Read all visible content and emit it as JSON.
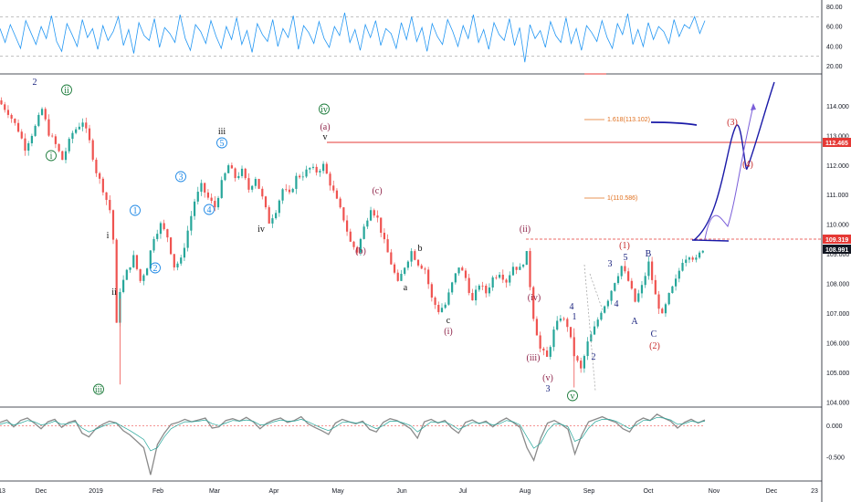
{
  "colors": {
    "up": "#26a69a",
    "down": "#ef5350",
    "indicator": "#2196f3",
    "wave_blue": "#1a237e",
    "wave_green": "#1b7a3a",
    "wave_red": "#c62828",
    "wave_maroon": "#8e2449",
    "wave_cyan": "#1e88e5",
    "wave_black": "#111111",
    "fib": "#e0701f",
    "projection": "#1a1aa8",
    "projection_alt": "#7b5fd9",
    "hline": "#e53935",
    "price_badge": "#131722"
  },
  "chart_data": [
    {
      "type": "line",
      "panel": "top_oscillator",
      "ylim": [
        15,
        85
      ],
      "yticks": [
        "80.00",
        "60.00",
        "40.00",
        "20.00"
      ],
      "grid": false,
      "reference_lines": [
        70,
        30
      ],
      "series": [
        {
          "values": [
            58,
            44,
            62,
            50,
            38,
            66,
            54,
            42,
            60,
            48,
            71,
            45,
            35,
            63,
            52,
            40,
            67,
            49,
            58,
            37,
            61,
            46,
            55,
            70,
            41,
            57,
            33,
            64,
            51,
            46,
            68,
            39,
            59,
            53,
            44,
            72,
            48,
            36,
            62,
            55,
            43,
            66,
            50,
            38,
            60,
            47,
            69,
            42,
            56,
            34,
            63,
            52,
            45,
            67,
            40,
            58,
            49,
            71,
            37,
            61,
            54,
            43,
            65,
            48,
            39,
            60,
            51,
            74,
            44,
            57,
            36,
            62,
            49,
            66,
            41,
            58,
            53,
            38,
            64,
            47,
            70,
            45,
            59,
            35,
            63,
            50,
            42,
            67,
            55,
            40,
            61,
            48,
            72,
            44,
            57,
            37,
            64,
            52,
            46,
            68,
            41,
            59,
            24,
            62,
            48,
            56,
            39,
            65,
            51,
            44,
            69,
            43,
            58,
            36,
            61,
            54,
            45,
            66,
            49,
            38,
            63,
            52,
            73,
            42,
            57,
            40,
            64,
            47,
            60,
            55,
            43,
            67,
            50,
            62,
            58,
            70,
            53,
            66
          ]
        }
      ]
    },
    {
      "type": "candlestick",
      "panel": "price",
      "ylim": [
        103.9,
        115.0
      ],
      "yticks": [
        "114.000",
        "113.000",
        "112.000",
        "111.000",
        "110.000",
        "109.000",
        "108.000",
        "107.000",
        "106.000",
        "105.000",
        "104.000"
      ],
      "x_tick_labels": [
        "13",
        "Dec",
        "2019",
        "Feb",
        "Mar",
        "Apr",
        "May",
        "Jun",
        "Jul",
        "Aug",
        "Sep",
        "Oct",
        "Nov",
        "Dec",
        "23"
      ],
      "price_path": [
        [
          0,
          114.2
        ],
        [
          3,
          113.8
        ],
        [
          6,
          113.2
        ],
        [
          8,
          112.6
        ],
        [
          11,
          113.3
        ],
        [
          13,
          113.9
        ],
        [
          15,
          113.1
        ],
        [
          17,
          112.7
        ],
        [
          19,
          112.2
        ],
        [
          22,
          113.1
        ],
        [
          25,
          113.5
        ],
        [
          27,
          112.8
        ],
        [
          29,
          111.8
        ],
        [
          31,
          111.2
        ],
        [
          33,
          110.5
        ],
        [
          34,
          109.5
        ],
        [
          35,
          106.6
        ],
        [
          36,
          107.8
        ],
        [
          38,
          108.4
        ],
        [
          40,
          108.9
        ],
        [
          42,
          108.1
        ],
        [
          44,
          108.6
        ],
        [
          46,
          109.6
        ],
        [
          48,
          110.0
        ],
        [
          50,
          109.6
        ],
        [
          52,
          108.6
        ],
        [
          54,
          108.8
        ],
        [
          56,
          109.8
        ],
        [
          58,
          110.8
        ],
        [
          60,
          111.3
        ],
        [
          62,
          110.9
        ],
        [
          64,
          110.6
        ],
        [
          66,
          111.4
        ],
        [
          68,
          112.0
        ],
        [
          70,
          111.6
        ],
        [
          72,
          111.8
        ],
        [
          74,
          111.2
        ],
        [
          76,
          111.6
        ],
        [
          78,
          110.9
        ],
        [
          80,
          110.1
        ],
        [
          82,
          110.5
        ],
        [
          84,
          111.2
        ],
        [
          86,
          111.0
        ],
        [
          88,
          111.6
        ],
        [
          90,
          111.7
        ],
        [
          92,
          111.9
        ],
        [
          94,
          111.8
        ],
        [
          96,
          112.0
        ],
        [
          98,
          111.4
        ],
        [
          100,
          110.8
        ],
        [
          102,
          110.2
        ],
        [
          104,
          109.4
        ],
        [
          106,
          109.1
        ],
        [
          108,
          109.9
        ],
        [
          110,
          110.6
        ],
        [
          112,
          110.2
        ],
        [
          114,
          109.4
        ],
        [
          116,
          108.7
        ],
        [
          118,
          108.0
        ],
        [
          120,
          108.6
        ],
        [
          122,
          109.1
        ],
        [
          124,
          108.7
        ],
        [
          126,
          108.5
        ],
        [
          128,
          107.5
        ],
        [
          130,
          107.1
        ],
        [
          132,
          107.3
        ],
        [
          134,
          108.0
        ],
        [
          136,
          108.6
        ],
        [
          138,
          108.2
        ],
        [
          140,
          107.4
        ],
        [
          142,
          108.0
        ],
        [
          144,
          107.7
        ],
        [
          146,
          108.2
        ],
        [
          148,
          108.4
        ],
        [
          150,
          108.1
        ],
        [
          152,
          108.6
        ],
        [
          154,
          108.5
        ],
        [
          156,
          109.0
        ],
        [
          158,
          106.9
        ],
        [
          160,
          105.8
        ],
        [
          162,
          105.5
        ],
        [
          164,
          106.4
        ],
        [
          166,
          106.9
        ],
        [
          168,
          106.6
        ],
        [
          170,
          105.6
        ],
        [
          172,
          105.1
        ],
        [
          174,
          106.0
        ],
        [
          176,
          106.5
        ],
        [
          178,
          107.1
        ],
        [
          180,
          107.5
        ],
        [
          182,
          108.1
        ],
        [
          184,
          108.6
        ],
        [
          186,
          108.1
        ],
        [
          188,
          107.4
        ],
        [
          190,
          107.9
        ],
        [
          192,
          108.7
        ],
        [
          194,
          107.6
        ],
        [
          196,
          106.9
        ],
        [
          198,
          107.6
        ],
        [
          200,
          108.1
        ],
        [
          202,
          108.8
        ],
        [
          204,
          109.0
        ],
        [
          206,
          108.8
        ],
        [
          208,
          109.2
        ]
      ],
      "x_end": 270
    },
    {
      "type": "line",
      "panel": "bottom_oscillator",
      "ylim": [
        -0.85,
        0.25
      ],
      "yticks": [
        "0.000",
        "-0.500"
      ],
      "grid": false,
      "zero_line": true,
      "series": [
        {
          "name": "",
          "values": [
            0.05,
            0.09,
            -0.02,
            0.08,
            0.12,
            0.04,
            -0.05,
            0.06,
            0.1,
            -0.03,
            0.05,
            0.08,
            -0.12,
            -0.18,
            -0.05,
            0.02,
            0.07,
            0.04,
            -0.08,
            -0.15,
            -0.25,
            -0.35,
            -0.78,
            -0.3,
            -0.12,
            0.02,
            0.05,
            0.1,
            0.06,
            0.09,
            0.12,
            -0.04,
            -0.02,
            0.08,
            0.11,
            0.07,
            0.13,
            0.06,
            -0.05,
            0.04,
            0.09,
            0.12,
            0.05,
            0.08,
            0.14,
            0.03,
            -0.03,
            -0.08,
            -0.14,
            0.04,
            0.1,
            0.06,
            0.03,
            0.07,
            -0.06,
            -0.1,
            0.05,
            0.11,
            0.08,
            0.02,
            -0.05,
            -0.2,
            0.06,
            0.1,
            0.04,
            0.08,
            -0.04,
            -0.12,
            0.05,
            0.09,
            0.03,
            0.07,
            -0.02,
            0.06,
            0.12,
            0.05,
            -0.03,
            -0.35,
            -0.55,
            -0.2,
            0.04,
            0.08,
            0.02,
            -0.06,
            -0.45,
            -0.15,
            0.06,
            0.1,
            0.14,
            0.09,
            0.05,
            -0.05,
            -0.1,
            0.06,
            0.12,
            0.08,
            0.18,
            0.12,
            0.07,
            -0.04,
            0.05,
            0.1,
            0.04,
            0.09
          ]
        },
        {
          "name": "",
          "values": [
            0.02,
            0.05,
            0.01,
            0.04,
            0.08,
            0.06,
            0.01,
            0.03,
            0.07,
            0.02,
            0.03,
            0.06,
            -0.04,
            -0.1,
            -0.06,
            -0.01,
            0.03,
            0.04,
            -0.02,
            -0.08,
            -0.15,
            -0.22,
            -0.4,
            -0.35,
            -0.18,
            -0.05,
            0.01,
            0.06,
            0.06,
            0.07,
            0.09,
            0.03,
            0.0,
            0.04,
            0.08,
            0.07,
            0.09,
            0.07,
            0.01,
            0.02,
            0.06,
            0.09,
            0.07,
            0.07,
            0.1,
            0.06,
            0.01,
            -0.04,
            -0.08,
            -0.02,
            0.05,
            0.06,
            0.04,
            0.05,
            0.0,
            -0.05,
            0.0,
            0.07,
            0.07,
            0.04,
            0.0,
            -0.1,
            -0.02,
            0.06,
            0.05,
            0.06,
            0.01,
            -0.06,
            -0.01,
            0.05,
            0.04,
            0.05,
            0.01,
            0.03,
            0.08,
            0.06,
            0.01,
            -0.18,
            -0.36,
            -0.28,
            -0.08,
            0.03,
            0.02,
            -0.02,
            -0.25,
            -0.2,
            -0.04,
            0.06,
            0.1,
            0.1,
            0.07,
            0.01,
            -0.05,
            0.01,
            0.08,
            0.08,
            0.13,
            0.12,
            0.09,
            0.02,
            0.03,
            0.07,
            0.05,
            0.07
          ]
        }
      ]
    }
  ],
  "price_labels": {
    "current_price": "108.991",
    "level_red": "112.465",
    "level_dashed": "109.319"
  },
  "fib_labels": {
    "fib_1618": "1.618(113.102)",
    "fib_1": "1(110.586)"
  },
  "wave_labels": [
    {
      "text": "2",
      "color": "wave_blue",
      "x": 38,
      "y": 93,
      "circle": false
    },
    {
      "text": "ii",
      "color": "wave_green",
      "x": 73,
      "y": 102,
      "circle": true
    },
    {
      "text": "i",
      "color": "wave_green",
      "x": 56,
      "y": 174,
      "circle": true
    },
    {
      "text": "i",
      "color": "wave_black",
      "x": 118,
      "y": 261,
      "circle": false
    },
    {
      "text": "ii",
      "color": "wave_black",
      "x": 125,
      "y": 323,
      "circle": false
    },
    {
      "text": "iii",
      "color": "wave_green",
      "x": 108,
      "y": 430,
      "circle": true
    },
    {
      "text": "1",
      "color": "wave_cyan",
      "x": 148,
      "y": 234,
      "circle": true
    },
    {
      "text": "2",
      "color": "wave_cyan",
      "x": 170,
      "y": 297,
      "circle": true
    },
    {
      "text": "3",
      "color": "wave_cyan",
      "x": 198,
      "y": 197,
      "circle": true
    },
    {
      "text": "4",
      "color": "wave_cyan",
      "x": 229,
      "y": 233,
      "circle": true
    },
    {
      "text": "5",
      "color": "wave_cyan",
      "x": 243,
      "y": 160,
      "circle": true
    },
    {
      "text": "iii",
      "color": "wave_black",
      "x": 243,
      "y": 147,
      "circle": false
    },
    {
      "text": "iv",
      "color": "wave_black",
      "x": 286,
      "y": 254,
      "circle": false
    },
    {
      "text": "iv",
      "color": "wave_green",
      "x": 355,
      "y": 123,
      "circle": true
    },
    {
      "text": "(a)",
      "color": "wave_maroon",
      "x": 356,
      "y": 142,
      "circle": false
    },
    {
      "text": "v",
      "color": "wave_black",
      "x": 356,
      "y": 153,
      "circle": false
    },
    {
      "text": "(b)",
      "color": "wave_maroon",
      "x": 395,
      "y": 278,
      "circle": false
    },
    {
      "text": "(c)",
      "color": "wave_maroon",
      "x": 413,
      "y": 212,
      "circle": false
    },
    {
      "text": "a",
      "color": "wave_black",
      "x": 444,
      "y": 318,
      "circle": false
    },
    {
      "text": "b",
      "color": "wave_black",
      "x": 460,
      "y": 275,
      "circle": false
    },
    {
      "text": "c",
      "color": "wave_black",
      "x": 491,
      "y": 354,
      "circle": false
    },
    {
      "text": "(i)",
      "color": "wave_maroon",
      "x": 491,
      "y": 366,
      "circle": false
    },
    {
      "text": "(ii)",
      "color": "wave_maroon",
      "x": 575,
      "y": 254,
      "circle": false
    },
    {
      "text": "(iv)",
      "color": "wave_maroon",
      "x": 585,
      "y": 329,
      "circle": false
    },
    {
      "text": "(iii)",
      "color": "wave_maroon",
      "x": 584,
      "y": 395,
      "circle": false
    },
    {
      "text": "(v)",
      "color": "wave_maroon",
      "x": 600,
      "y": 417,
      "circle": false
    },
    {
      "text": "3",
      "color": "wave_blue",
      "x": 600,
      "y": 429,
      "circle": false
    },
    {
      "text": "4",
      "color": "wave_blue",
      "x": 626,
      "y": 339,
      "circle": false
    },
    {
      "text": "1",
      "color": "wave_blue",
      "x": 629,
      "y": 350,
      "circle": false
    },
    {
      "text": "v",
      "color": "wave_green",
      "x": 627,
      "y": 437,
      "circle": true
    },
    {
      "text": "2",
      "color": "wave_blue",
      "x": 650,
      "y": 394,
      "circle": false
    },
    {
      "text": "3",
      "color": "wave_blue",
      "x": 668,
      "y": 292,
      "circle": false
    },
    {
      "text": "4",
      "color": "wave_blue",
      "x": 675,
      "y": 336,
      "circle": false
    },
    {
      "text": "5",
      "color": "wave_blue",
      "x": 685,
      "y": 285,
      "circle": false
    },
    {
      "text": "(1)",
      "color": "wave_red",
      "x": 684,
      "y": 272,
      "circle": false
    },
    {
      "text": "B",
      "color": "wave_blue",
      "x": 710,
      "y": 281,
      "circle": false
    },
    {
      "text": "A",
      "color": "wave_blue",
      "x": 695,
      "y": 355,
      "circle": false
    },
    {
      "text": "C",
      "color": "wave_blue",
      "x": 716,
      "y": 369,
      "circle": false
    },
    {
      "text": "(2)",
      "color": "wave_red",
      "x": 717,
      "y": 382,
      "circle": false
    },
    {
      "text": "(3)",
      "color": "wave_red",
      "x": 802,
      "y": 137,
      "circle": false
    },
    {
      "text": "(4)",
      "color": "wave_red",
      "x": 819,
      "y": 183,
      "circle": false
    }
  ]
}
